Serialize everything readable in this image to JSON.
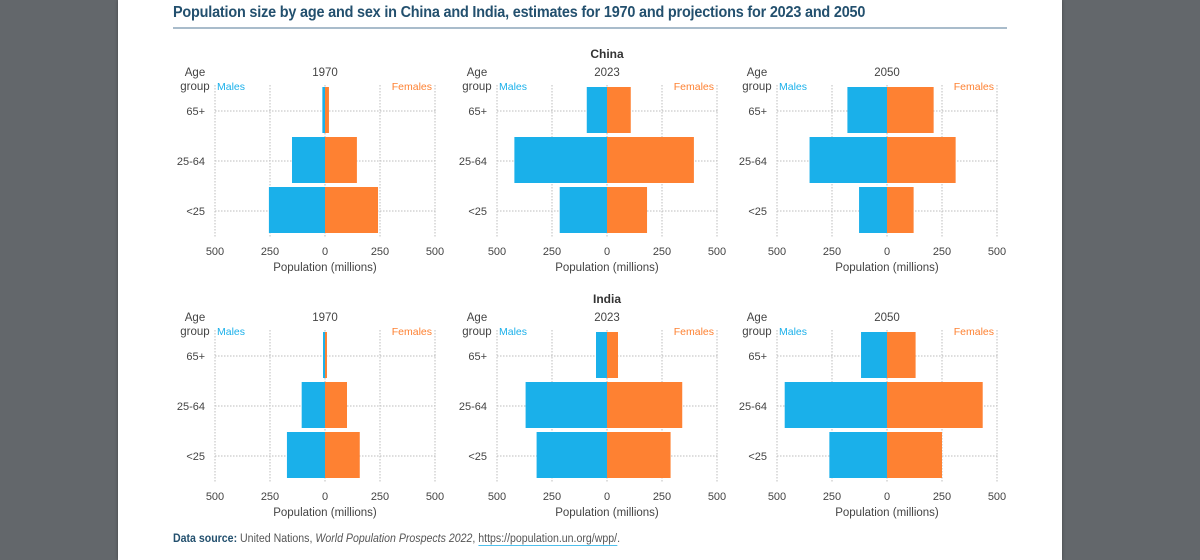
{
  "figure": {
    "label": "Figure",
    "title": "Population size by age and sex in China and India, estimates for 1970 and projections for 2023 and 2050",
    "source_label": "Data source:",
    "source_text_1": "United Nations,",
    "source_publication": "World Population Prospects 2022",
    "source_sep": ",",
    "source_url": "https://population.un.org/wpp/",
    "source_end": "."
  },
  "colors": {
    "males": "#1ab0ea",
    "females": "#fe8132",
    "title": "#23506e"
  },
  "chart_data": [
    {
      "type": "bar",
      "orientation": "horizontal",
      "layout": "population-pyramid",
      "country": "China",
      "year": "1970",
      "categories": [
        "65+",
        "25-64",
        "<25"
      ],
      "series": [
        {
          "name": "Males",
          "values": [
            12,
            150,
            255
          ]
        },
        {
          "name": "Females",
          "values": [
            18,
            145,
            241
          ]
        }
      ],
      "ylabel": "Age group",
      "xlabel": "Population (millions)",
      "xlim": [
        -500,
        500
      ],
      "xticks": [
        -500,
        -250,
        0,
        250,
        500
      ],
      "xticklabels": [
        "500",
        "250",
        "0",
        "250",
        "500"
      ],
      "grid": true,
      "legend": [
        "Males",
        "Females"
      ]
    },
    {
      "type": "bar",
      "orientation": "horizontal",
      "layout": "population-pyramid",
      "country": "China",
      "year": "2023",
      "categories": [
        "65+",
        "25-64",
        "<25"
      ],
      "series": [
        {
          "name": "Males",
          "values": [
            92,
            421,
            215
          ]
        },
        {
          "name": "Females",
          "values": [
            108,
            395,
            182
          ]
        }
      ],
      "ylabel": "Age group",
      "xlabel": "Population (millions)",
      "xlim": [
        -500,
        500
      ],
      "xticks": [
        -500,
        -250,
        0,
        250,
        500
      ],
      "xticklabels": [
        "500",
        "250",
        "0",
        "250",
        "500"
      ],
      "grid": true,
      "legend": [
        "Males",
        "Females"
      ]
    },
    {
      "type": "bar",
      "orientation": "horizontal",
      "layout": "population-pyramid",
      "country": "China",
      "year": "2050",
      "categories": [
        "65+",
        "25-64",
        "<25"
      ],
      "series": [
        {
          "name": "Males",
          "values": [
            180,
            352,
            127
          ]
        },
        {
          "name": "Females",
          "values": [
            212,
            312,
            121
          ]
        }
      ],
      "ylabel": "Age group",
      "xlabel": "Population (millions)",
      "xlim": [
        -500,
        500
      ],
      "xticks": [
        -500,
        -250,
        0,
        250,
        500
      ],
      "xticklabels": [
        "500",
        "250",
        "0",
        "250",
        "500"
      ],
      "grid": true,
      "legend": [
        "Males",
        "Females"
      ]
    },
    {
      "type": "bar",
      "orientation": "horizontal",
      "layout": "population-pyramid",
      "country": "India",
      "year": "1970",
      "categories": [
        "65+",
        "25-64",
        "<25"
      ],
      "series": [
        {
          "name": "Males",
          "values": [
            9,
            106,
            173
          ]
        },
        {
          "name": "Females",
          "values": [
            9,
            100,
            158
          ]
        }
      ],
      "ylabel": "Age group",
      "xlabel": "Population (millions)",
      "xlim": [
        -500,
        500
      ],
      "xticks": [
        -500,
        -250,
        0,
        250,
        500
      ],
      "xticklabels": [
        "500",
        "250",
        "0",
        "250",
        "500"
      ],
      "grid": true,
      "legend": [
        "Males",
        "Females"
      ]
    },
    {
      "type": "bar",
      "orientation": "horizontal",
      "layout": "population-pyramid",
      "country": "India",
      "year": "2023",
      "categories": [
        "65+",
        "25-64",
        "<25"
      ],
      "series": [
        {
          "name": "Males",
          "values": [
            50,
            370,
            320
          ]
        },
        {
          "name": "Females",
          "values": [
            50,
            342,
            289
          ]
        }
      ],
      "ylabel": "Age group",
      "xlabel": "Population (millions)",
      "xlim": [
        -500,
        500
      ],
      "xticks": [
        -500,
        -250,
        0,
        250,
        500
      ],
      "xticklabels": [
        "500",
        "250",
        "0",
        "250",
        "500"
      ],
      "grid": true,
      "legend": [
        "Males",
        "Females"
      ]
    },
    {
      "type": "bar",
      "orientation": "horizontal",
      "layout": "population-pyramid",
      "country": "India",
      "year": "2050",
      "categories": [
        "65+",
        "25-64",
        "<25"
      ],
      "series": [
        {
          "name": "Males",
          "values": [
            118,
            465,
            262
          ]
        },
        {
          "name": "Females",
          "values": [
            130,
            435,
            250
          ]
        }
      ],
      "ylabel": "Age group",
      "xlabel": "Population (millions)",
      "xlim": [
        -500,
        500
      ],
      "xticks": [
        -500,
        -250,
        0,
        250,
        500
      ],
      "xticklabels": [
        "500",
        "250",
        "0",
        "250",
        "500"
      ],
      "grid": true,
      "legend": [
        "Males",
        "Females"
      ]
    }
  ],
  "rows": [
    {
      "country": "China",
      "panels": [
        0,
        1,
        2
      ]
    },
    {
      "country": "India",
      "panels": [
        3,
        4,
        5
      ]
    }
  ],
  "labels": {
    "age": "Age",
    "group": "group"
  }
}
